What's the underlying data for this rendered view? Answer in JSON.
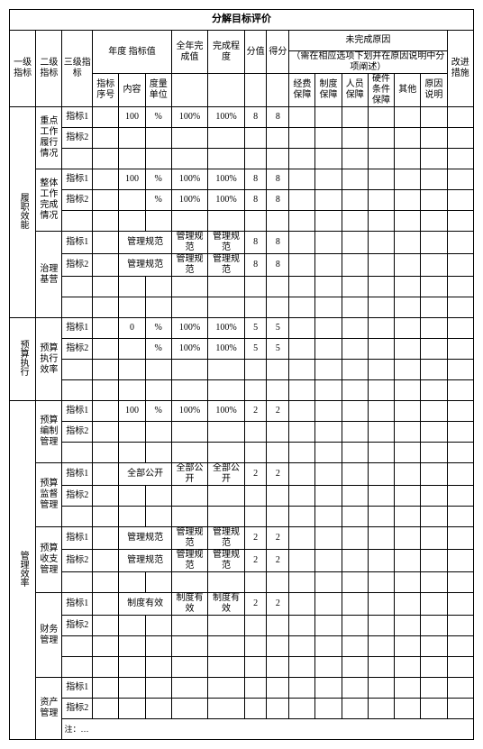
{
  "title": "分解目标评价",
  "headers": {
    "l1": "一级指标",
    "l2": "二级指标",
    "l3": "三级指标",
    "year_target": "年度 指标值",
    "full_year": "全年完成值",
    "completion": "完成程度",
    "score": "分值",
    "got": "得分",
    "not_done": "未完成原因",
    "not_done_sub": "（需在相应选项下划并在原因说明中分项阐述）",
    "improve": "改进措施",
    "seq": "指标序号",
    "content": "内容",
    "unit": "度量单位",
    "r1": "经费保障",
    "r2": "制度保障",
    "r3": "人员保障",
    "r4": "硬件条件保障",
    "r5": "其他",
    "r6": "原因说明"
  },
  "lvl1": {
    "a": "履职效能",
    "b": "预算执行",
    "c": "管理效率"
  },
  "lvl2": {
    "a1": "重点工作履行情况",
    "a2": "整体工作完成情况",
    "a3": "治理基营",
    "b1": "预算执行效率",
    "c1": "预算编制管理",
    "c2": "预算监督管理",
    "c3": "预算收支管理",
    "c4": "财务管理",
    "c5": "资产管理"
  },
  "lvl3": {
    "i1": "指标1",
    "i2": "指标2"
  },
  "rows": {
    "a1_1": {
      "content": "100",
      "unit": "%",
      "fy": "100%",
      "cp": "100%",
      "sc": "8",
      "gs": "8"
    },
    "a2_1": {
      "content": "100",
      "unit": "%",
      "fy": "100%",
      "cp": "100%",
      "sc": "8",
      "gs": "8"
    },
    "a2_2": {
      "content": "",
      "unit": "%",
      "fy": "100%",
      "cp": "100%",
      "sc": "8",
      "gs": "8"
    },
    "a3_1": {
      "content": "管理规范",
      "unit": "",
      "fy": "管理规范",
      "cp": "管理规范",
      "sc": "8",
      "gs": "8"
    },
    "a3_2": {
      "content": "管理规范",
      "unit": "",
      "fy": "管理规范",
      "cp": "管理规范",
      "sc": "8",
      "gs": "8"
    },
    "b1_1": {
      "content": "0",
      "unit": "%",
      "fy": "100%",
      "cp": "100%",
      "sc": "5",
      "gs": "5"
    },
    "b1_2": {
      "content": "",
      "unit": "%",
      "fy": "100%",
      "cp": "100%",
      "sc": "5",
      "gs": "5"
    },
    "c1_1": {
      "content": "100",
      "unit": "%",
      "fy": "100%",
      "cp": "100%",
      "sc": "2",
      "gs": "2"
    },
    "c2_1": {
      "content": "全部公开",
      "unit": "",
      "fy": "全部公开",
      "cp": "全部公开",
      "sc": "2",
      "gs": "2"
    },
    "c3_1": {
      "content": "管理规范",
      "unit": "",
      "fy": "管理规范",
      "cp": "管理规范",
      "sc": "2",
      "gs": "2"
    },
    "c3_2": {
      "content": "管理规范",
      "unit": "",
      "fy": "管理规范",
      "cp": "管理规范",
      "sc": "2",
      "gs": "2"
    },
    "c4_1": {
      "content": "制度有效",
      "unit": "",
      "fy": "制度有效",
      "cp": "制度有效",
      "sc": "2",
      "gs": "2"
    }
  },
  "footnote": "注：…"
}
